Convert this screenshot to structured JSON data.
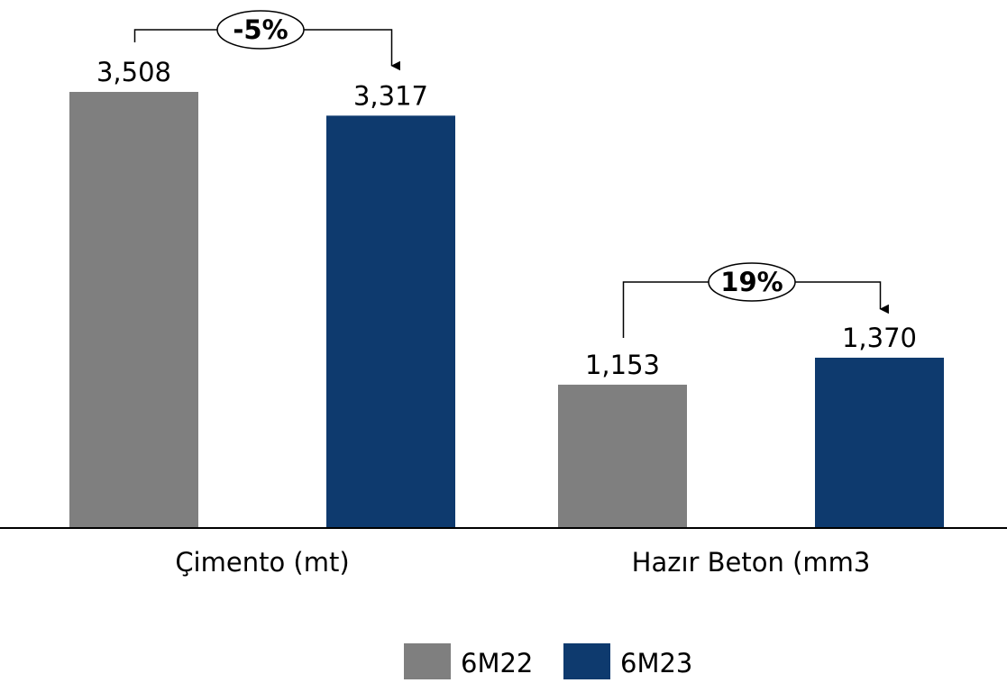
{
  "chart_data": {
    "type": "bar",
    "categories": [
      "Çimento (mt)",
      "Hazır Beton (mm3"
    ],
    "series": [
      {
        "name": "6M22",
        "values": [
          3508,
          1153
        ],
        "labels": [
          "3,508",
          "1,153"
        ],
        "color": "#7f7f7f"
      },
      {
        "name": "6M23",
        "values": [
          3317,
          1370
        ],
        "labels": [
          "3,317",
          "1,370"
        ],
        "color": "#0e3a6e"
      }
    ],
    "annotations": [
      "-5%",
      "19%"
    ],
    "ylim": [
      0,
      3508
    ],
    "grid": false,
    "legend": "bottom-center"
  }
}
